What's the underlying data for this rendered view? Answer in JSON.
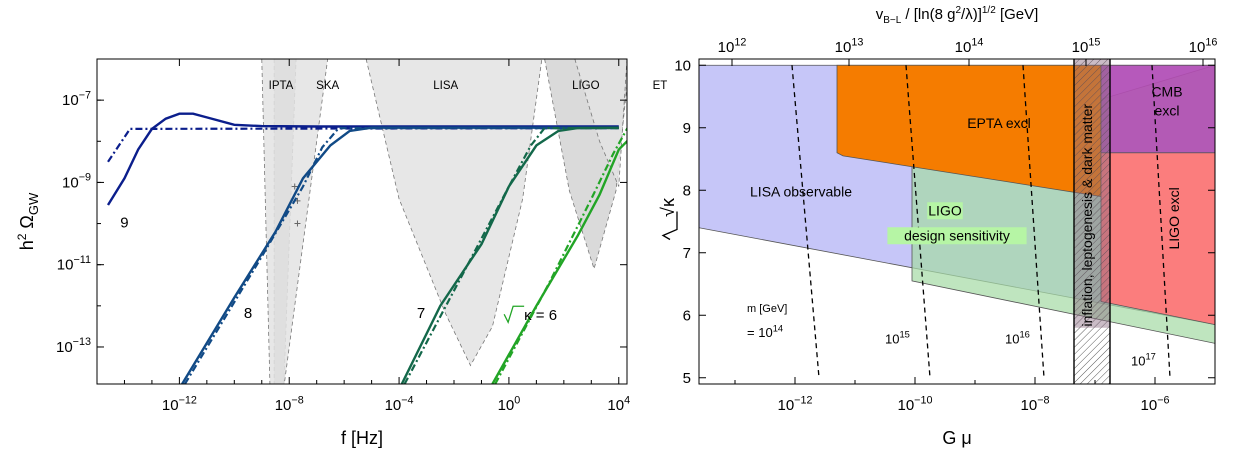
{
  "chart_data": [
    {
      "type": "line",
      "xlabel": "f [Hz]",
      "ylabel": "h² Ω_GW",
      "ylabel_main": "h",
      "ylabel_sup": "2",
      "ylabel_omega": " Ω",
      "ylabel_sub": "GW",
      "x_scale": "log",
      "y_scale": "log",
      "xlim_exp": [
        -15,
        4.3
      ],
      "ylim_exp": [
        -13.9,
        -6
      ],
      "x_ticks": [
        {
          "exp": -12,
          "base": "10",
          "sup": "−12"
        },
        {
          "exp": -8,
          "base": "10",
          "sup": "−8"
        },
        {
          "exp": -4,
          "base": "10",
          "sup": "−4"
        },
        {
          "exp": 0,
          "base": "10",
          "sup": "0"
        },
        {
          "exp": 4,
          "base": "10",
          "sup": "4"
        }
      ],
      "y_ticks": [
        {
          "exp": -13,
          "base": "10",
          "sup": "−13"
        },
        {
          "exp": -11,
          "base": "10",
          "sup": "−11"
        },
        {
          "exp": -9,
          "base": "10",
          "sup": "−9"
        },
        {
          "exp": -7,
          "base": "10",
          "sup": "−7"
        }
      ],
      "region_labels": [
        {
          "text": "IPTA",
          "x": -8.3,
          "y": -6.5
        },
        {
          "text": "SKA",
          "x": -6.6,
          "y": -6.5
        },
        {
          "text": "LISA",
          "x": -2.3,
          "y": -6.5
        },
        {
          "text": "LIGO",
          "x": 2.8,
          "y": -6.5
        },
        {
          "text": "ET",
          "x": 5.5,
          "y": -6.5
        }
      ],
      "sensitivity_regions": [
        {
          "name": "IPTA",
          "points": [
            [
              -8.55,
              -6
            ],
            [
              -8.55,
              -14
            ],
            [
              -8.2,
              -14
            ],
            [
              -7.75,
              -6
            ]
          ]
        },
        {
          "name": "SKA",
          "points": [
            [
              -9,
              -6
            ],
            [
              -8.7,
              -14
            ],
            [
              -8.2,
              -14
            ],
            [
              -6.6,
              -6
            ]
          ]
        },
        {
          "name": "LISA",
          "points": [
            [
              -5.2,
              -6
            ],
            [
              -4,
              -9.4
            ],
            [
              -2.3,
              -12.2
            ],
            [
              -1.4,
              -13.45
            ],
            [
              -0.6,
              -12.5
            ],
            [
              0.5,
              -9.4
            ],
            [
              1.2,
              -6
            ]
          ]
        },
        {
          "name": "LIGO",
          "points": [
            [
              1.3,
              -6
            ],
            [
              2.2,
              -9.2
            ],
            [
              3.1,
              -11.1
            ],
            [
              3.9,
              -9.2
            ],
            [
              4.4,
              -6
            ]
          ]
        },
        {
          "name": "ET",
          "points": [
            [
              2.4,
              -6
            ],
            [
              3.3,
              -8
            ],
            [
              4.0,
              -9.1
            ],
            [
              4.3,
              -6
            ]
          ]
        }
      ],
      "series": [
        {
          "name": "9",
          "color": "#0b1e8c",
          "solid": [
            [
              -14.6,
              -9.55
            ],
            [
              -14,
              -8.9
            ],
            [
              -13.5,
              -8.2
            ],
            [
              -13,
              -7.7
            ],
            [
              -12.5,
              -7.45
            ],
            [
              -12,
              -7.33
            ],
            [
              -11.5,
              -7.33
            ],
            [
              -11,
              -7.42
            ],
            [
              -10,
              -7.6
            ],
            [
              -9,
              -7.63
            ],
            [
              -7,
              -7.64
            ],
            [
              4,
              -7.64
            ]
          ],
          "dashdot": [
            [
              -14.6,
              -8.5
            ],
            [
              -13.8,
              -7.7
            ],
            [
              4,
              -7.68
            ]
          ]
        },
        {
          "name": "8",
          "color": "#114a86",
          "solid": [
            [
              -11.9,
              -13.9
            ],
            [
              -10,
              -11.8
            ],
            [
              -8.5,
              -10.2
            ],
            [
              -7.5,
              -8.9
            ],
            [
              -6.5,
              -8.1
            ],
            [
              -5.8,
              -7.75
            ],
            [
              -5,
              -7.67
            ],
            [
              4,
              -7.67
            ]
          ],
          "dashdot": [
            [
              -11.8,
              -13.9
            ],
            [
              -9,
              -10.8
            ],
            [
              -7.5,
              -9.1
            ],
            [
              -6.8,
              -8.15
            ],
            [
              -6.2,
              -7.68
            ],
            [
              4,
              -7.68
            ]
          ]
        },
        {
          "name": "7",
          "color": "#13684a",
          "solid": [
            [
              -3.9,
              -13.9
            ],
            [
              -2.5,
              -12
            ],
            [
              -1,
              -10.5
            ],
            [
              0,
              -9.1
            ],
            [
              1,
              -8.1
            ],
            [
              1.8,
              -7.75
            ],
            [
              2.5,
              -7.68
            ],
            [
              4,
              -7.67
            ]
          ],
          "dashdot": [
            [
              -3.8,
              -13.9
            ],
            [
              -1.5,
              -11
            ],
            [
              0,
              -9.1
            ],
            [
              0.8,
              -8.1
            ],
            [
              1.3,
              -7.68
            ],
            [
              4,
              -7.68
            ]
          ]
        },
        {
          "name": "√κ = 6",
          "color": "#22a526",
          "solid": [
            [
              -0.6,
              -13.9
            ],
            [
              1,
              -12
            ],
            [
              2.5,
              -10.3
            ],
            [
              3.3,
              -9.3
            ],
            [
              4,
              -8.2
            ],
            [
              4.6,
              -7.8
            ],
            [
              5,
              -7.72
            ],
            [
              6,
              -7.7
            ]
          ],
          "dashdot": [
            [
              -0.5,
              -13.9
            ],
            [
              1.5,
              -11.4
            ],
            [
              3,
              -9.4
            ],
            [
              3.8,
              -8.3
            ],
            [
              4.3,
              -7.7
            ],
            [
              6,
              -7.7
            ]
          ]
        }
      ],
      "curve_labels": [
        {
          "text": "9",
          "x": -14,
          "y": -10.1
        },
        {
          "text": "8",
          "x": -9.5,
          "y": -12.3
        },
        {
          "text": "7",
          "x": -3.2,
          "y": -12.3
        },
        {
          "text": "κ = 6",
          "x": 0.7,
          "y": -12.35
        }
      ],
      "markers": [
        [
          -7.8,
          -9.1
        ],
        [
          -7.7,
          -9.45
        ],
        [
          -7.7,
          -10
        ]
      ]
    },
    {
      "type": "area",
      "xlabel": "G μ",
      "ylabel": "√κ",
      "top_axis_label": "v_B−L / [ln(8 g²/λ)]^1/2 [GeV]",
      "top_axis_label_main": "v",
      "top_axis_label_sub": "B−L",
      "top_axis_label_mid": " / [ln(8 g",
      "top_axis_label_sup1": "2",
      "top_axis_label_end": "/λ)]",
      "top_axis_label_sup2": "1/2",
      "top_axis_label_unit": " [GeV]",
      "x_scale": "log",
      "xlim_exp": [
        -13.6,
        -5
      ],
      "ylim": [
        4.9,
        10.1
      ],
      "x_ticks": [
        {
          "exp": -12,
          "base": "10",
          "sup": "−12"
        },
        {
          "exp": -10,
          "base": "10",
          "sup": "−10"
        },
        {
          "exp": -8,
          "base": "10",
          "sup": "−8"
        },
        {
          "exp": -6,
          "base": "10",
          "sup": "−6"
        }
      ],
      "top_ticks": [
        {
          "exp": -13.05,
          "base": "10",
          "sup": "12"
        },
        {
          "exp": -11.1,
          "base": "10",
          "sup": "13"
        },
        {
          "exp": -9.1,
          "base": "10",
          "sup": "14"
        },
        {
          "exp": -7.15,
          "base": "10",
          "sup": "15"
        },
        {
          "exp": -5.2,
          "base": "10",
          "sup": "16"
        }
      ],
      "y_ticks": [
        5,
        6,
        7,
        8,
        9,
        10
      ],
      "regions": [
        {
          "name": "LISA observable",
          "color": "#c6c6f8",
          "points": [
            [
              -13.6,
              10
            ],
            [
              -13.6,
              7.4
            ],
            [
              -5,
              5.85
            ],
            [
              -5,
              10
            ]
          ]
        },
        {
          "name": "LIGO design sensitivity",
          "color": "#a6dba6",
          "points": [
            [
              -10.05,
              8.55
            ],
            [
              -10.05,
              6.55
            ],
            [
              -5,
              5.55
            ],
            [
              -5,
              10
            ]
          ]
        },
        {
          "name": "EPTA excl",
          "color": "#f57c00",
          "points": [
            [
              -11.3,
              10
            ],
            [
              -11.3,
              8.6
            ],
            [
              -11.2,
              8.55
            ],
            [
              -6.9,
              7.9
            ],
            [
              -6.9,
              10
            ]
          ]
        },
        {
          "name": "LIGO excl",
          "color": "#fb7d7d",
          "points": [
            [
              -6.9,
              8.6
            ],
            [
              -5,
              8.6
            ],
            [
              -5,
              5.85
            ],
            [
              -6.9,
              6.22
            ]
          ]
        },
        {
          "name": "CMB excl",
          "color": "#b44cb4",
          "points": [
            [
              -6.9,
              10
            ],
            [
              -6.9,
              8.6
            ],
            [
              -5,
              8.6
            ],
            [
              -5,
              10
            ]
          ]
        }
      ],
      "region_labels": [
        {
          "text": "EPTA excl",
          "x": -8.6,
          "y": 9.0
        },
        {
          "text": "LISA observable",
          "x": -11.9,
          "y": 7.9
        },
        {
          "text": "LIGO",
          "x": -9.5,
          "y": 7.6
        },
        {
          "text": "design sensitivity",
          "x": -9.3,
          "y": 7.2
        },
        {
          "text": "LIGO excl",
          "x": -5.6,
          "y": 7.55
        },
        {
          "text": "CMB",
          "x": -5.8,
          "y": 9.5
        },
        {
          "text": "excl",
          "x": -5.8,
          "y": 9.2
        },
        {
          "text": "inflation, leptogenesis & dark matter",
          "x": -7.05,
          "y": 7.6
        }
      ],
      "hatched_band": [
        -7.35,
        -6.75
      ],
      "mass_lines": [
        {
          "label_base": "10",
          "label_sup": "14",
          "label_prefix": "= ",
          "points": [
            [
              -12.05,
              10
            ],
            [
              -11.6,
              5
            ]
          ],
          "label_x": -12.8,
          "label_y": 5.65
        },
        {
          "label_base": "10",
          "label_sup": "15",
          "label_prefix": "",
          "points": [
            [
              -10.15,
              10
            ],
            [
              -9.75,
              5
            ]
          ],
          "label_x": -10.5,
          "label_y": 5.55
        },
        {
          "label_base": "10",
          "label_sup": "16",
          "label_prefix": "",
          "points": [
            [
              -8.2,
              10
            ],
            [
              -7.85,
              5
            ]
          ],
          "label_x": -8.5,
          "label_y": 5.55
        },
        {
          "label_base": "10",
          "label_sup": "17",
          "label_prefix": "",
          "points": [
            [
              -6.05,
              10
            ],
            [
              -5.75,
              5
            ]
          ],
          "label_x": -6.4,
          "label_y": 5.2
        }
      ],
      "mass_title": "m [GeV]",
      "mass_title_x": -12.8,
      "mass_title_y": 6.05
    }
  ]
}
